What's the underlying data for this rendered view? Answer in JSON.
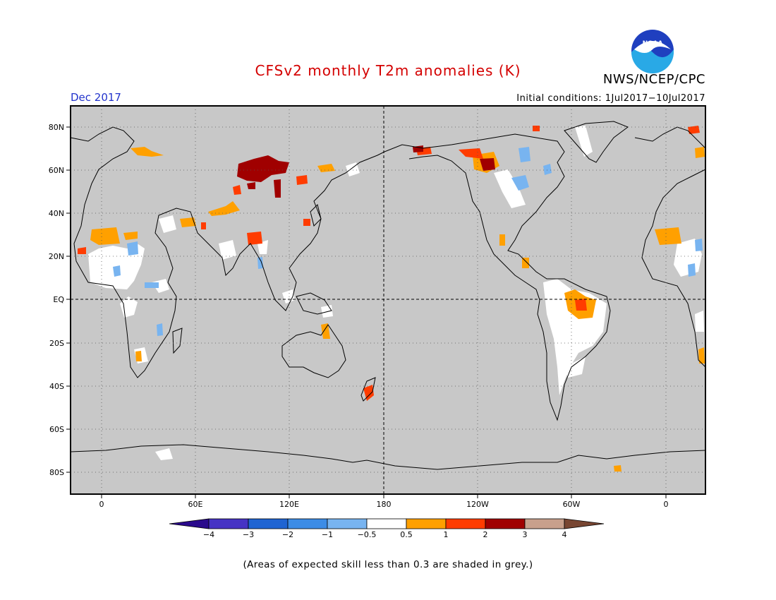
{
  "header": {
    "title": "CFSv2 monthly T2m anomalies (K)",
    "agency": "NWS/NCEP/CPC",
    "logo_text": "NOAA",
    "valid_month": "Dec 2017",
    "initial_conditions": "Initial conditions: 1Jul2017−10Jul2017"
  },
  "map": {
    "projection": "cylindrical equidistant",
    "center_longitude": 180,
    "land_color": "#c8c8c8",
    "grid_style": "dotted",
    "lat_labels": [
      "80N",
      "60N",
      "40N",
      "20N",
      "EQ",
      "20S",
      "40S",
      "60S",
      "80S"
    ],
    "lon_labels": [
      "0",
      "60E",
      "120E",
      "180",
      "120W",
      "60W",
      "0"
    ]
  },
  "colorbar": {
    "colors": [
      "#2a0a8c",
      "#4633c4",
      "#1f64d2",
      "#3c8ce6",
      "#78b4f0",
      "#ffffff",
      "#ffa000",
      "#ff3c00",
      "#a00000",
      "#c8a08c",
      "#784632"
    ],
    "tick_labels": [
      "−4",
      "−3",
      "−2",
      "−1",
      "−0.5",
      "0.5",
      "1",
      "2",
      "3",
      "4"
    ]
  },
  "footnote": "(Areas of expected skill less than 0.3 are shaded in grey.)"
}
